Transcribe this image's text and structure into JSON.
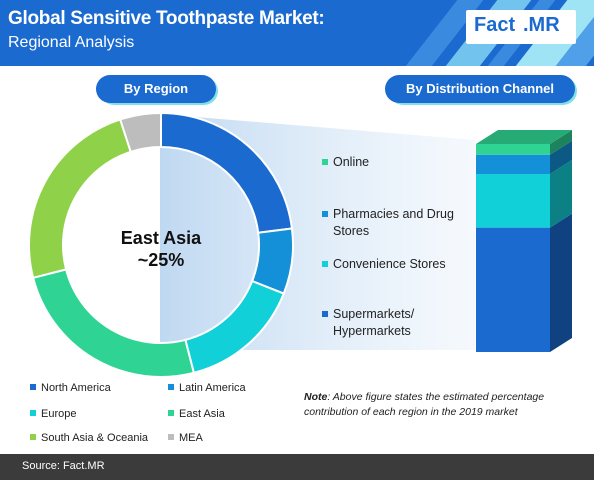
{
  "header": {
    "title": "Global Sensitive Toothpaste Market:",
    "subtitle": "Regional Analysis",
    "logo_part1": "Fact",
    "logo_part2": ".MR"
  },
  "sections": {
    "region_label": "By Region",
    "channel_label": "By Distribution Channel"
  },
  "donut_center": {
    "line1": "East Asia",
    "line2": "~25%"
  },
  "note": {
    "bold": "Note",
    "text": ": Above figure states the estimated percentage contribution of each region in the 2019 market"
  },
  "footer": {
    "source": "Source: Fact.MR"
  },
  "colors": {
    "header_bg": "#1a6ad0",
    "pill_bg": "#1a6ad0",
    "footer_bg": "#3b3b3b"
  },
  "chart_data": [
    {
      "type": "pie",
      "variant": "donut",
      "categories": [
        "North America",
        "Latin America",
        "Europe",
        "East Asia",
        "South Asia & Oceania",
        "MEA"
      ],
      "values": [
        23,
        8,
        15,
        25,
        24,
        5
      ],
      "unit": "%",
      "colors": [
        "#1a6ad0",
        "#1490d8",
        "#12d0d8",
        "#2fd494",
        "#8fd24a",
        "#bdbdbd"
      ],
      "legend_placement": "bottom"
    },
    {
      "type": "bar",
      "variant": "stacked-3d",
      "categories": [
        "Supermarkets/ Hypermarkets",
        "Convenience Stores",
        "Pharmacies and Drug Stores",
        "Online"
      ],
      "values": [
        58,
        25,
        9,
        5
      ],
      "unit": "%",
      "colors": [
        "#1a6ad0",
        "#12d0d8",
        "#1490d8",
        "#2fd494"
      ],
      "legend_placement": "left"
    }
  ]
}
